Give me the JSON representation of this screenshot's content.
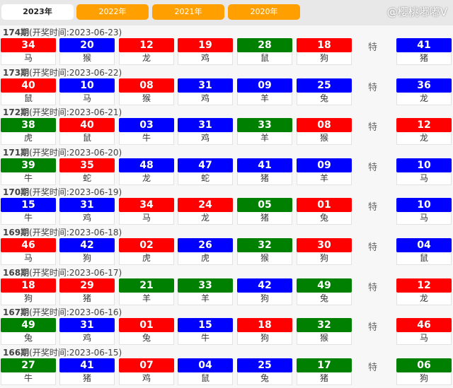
{
  "tabs": [
    "2023年",
    "2022年",
    "2021年",
    "2020年"
  ],
  "special_label": "特",
  "colors": {
    "red": "#ff0000",
    "blue": "#0000ff",
    "green": "#008000"
  },
  "draws": [
    {
      "period": "174期",
      "date": "(开奖时间:2023-06-23)",
      "balls": [
        [
          "34",
          "马",
          "red"
        ],
        [
          "20",
          "猴",
          "blue"
        ],
        [
          "12",
          "龙",
          "red"
        ],
        [
          "19",
          "鸡",
          "red"
        ],
        [
          "28",
          "鼠",
          "green"
        ],
        [
          "18",
          "狗",
          "red"
        ]
      ],
      "special": [
        "41",
        "猪",
        "blue"
      ]
    },
    {
      "period": "173期",
      "date": "(开奖时间:2023-06-22)",
      "balls": [
        [
          "40",
          "鼠",
          "red"
        ],
        [
          "10",
          "马",
          "blue"
        ],
        [
          "08",
          "猴",
          "red"
        ],
        [
          "31",
          "鸡",
          "blue"
        ],
        [
          "09",
          "羊",
          "blue"
        ],
        [
          "25",
          "兔",
          "blue"
        ]
      ],
      "special": [
        "36",
        "龙",
        "blue"
      ]
    },
    {
      "period": "172期",
      "date": "(开奖时间:2023-06-21)",
      "balls": [
        [
          "38",
          "虎",
          "green"
        ],
        [
          "40",
          "鼠",
          "red"
        ],
        [
          "03",
          "牛",
          "blue"
        ],
        [
          "31",
          "鸡",
          "blue"
        ],
        [
          "33",
          "羊",
          "green"
        ],
        [
          "08",
          "猴",
          "red"
        ]
      ],
      "special": [
        "12",
        "龙",
        "red"
      ]
    },
    {
      "period": "171期",
      "date": "(开奖时间:2023-06-20)",
      "balls": [
        [
          "39",
          "牛",
          "green"
        ],
        [
          "35",
          "蛇",
          "red"
        ],
        [
          "48",
          "龙",
          "blue"
        ],
        [
          "47",
          "蛇",
          "blue"
        ],
        [
          "41",
          "猪",
          "blue"
        ],
        [
          "09",
          "羊",
          "blue"
        ]
      ],
      "special": [
        "10",
        "马",
        "blue"
      ]
    },
    {
      "period": "170期",
      "date": "(开奖时间:2023-06-19)",
      "balls": [
        [
          "15",
          "牛",
          "blue"
        ],
        [
          "31",
          "鸡",
          "blue"
        ],
        [
          "34",
          "马",
          "red"
        ],
        [
          "24",
          "龙",
          "red"
        ],
        [
          "05",
          "猪",
          "green"
        ],
        [
          "01",
          "兔",
          "red"
        ]
      ],
      "special": [
        "10",
        "马",
        "blue"
      ]
    },
    {
      "period": "169期",
      "date": "(开奖时间:2023-06-18)",
      "balls": [
        [
          "46",
          "马",
          "red"
        ],
        [
          "42",
          "狗",
          "blue"
        ],
        [
          "02",
          "虎",
          "red"
        ],
        [
          "26",
          "虎",
          "blue"
        ],
        [
          "32",
          "猴",
          "green"
        ],
        [
          "30",
          "狗",
          "red"
        ]
      ],
      "special": [
        "04",
        "鼠",
        "blue"
      ]
    },
    {
      "period": "168期",
      "date": "(开奖时间:2023-06-17)",
      "balls": [
        [
          "18",
          "狗",
          "red"
        ],
        [
          "29",
          "猪",
          "red"
        ],
        [
          "21",
          "羊",
          "green"
        ],
        [
          "33",
          "羊",
          "green"
        ],
        [
          "42",
          "狗",
          "blue"
        ],
        [
          "49",
          "兔",
          "green"
        ]
      ],
      "special": [
        "12",
        "龙",
        "red"
      ]
    },
    {
      "period": "167期",
      "date": "(开奖时间:2023-06-16)",
      "balls": [
        [
          "49",
          "兔",
          "green"
        ],
        [
          "31",
          "鸡",
          "blue"
        ],
        [
          "01",
          "兔",
          "red"
        ],
        [
          "15",
          "牛",
          "blue"
        ],
        [
          "18",
          "狗",
          "red"
        ],
        [
          "32",
          "猴",
          "green"
        ]
      ],
      "special": [
        "46",
        "马",
        "red"
      ]
    },
    {
      "period": "166期",
      "date": "(开奖时间:2023-06-15)",
      "balls": [
        [
          "27",
          "牛",
          "green"
        ],
        [
          "41",
          "猪",
          "blue"
        ],
        [
          "07",
          "鸡",
          "red"
        ],
        [
          "04",
          "鼠",
          "blue"
        ],
        [
          "25",
          "兔",
          "blue"
        ],
        [
          "17",
          "猪",
          "green"
        ]
      ],
      "special": [
        "06",
        "狗",
        "green"
      ]
    }
  ],
  "watermark": "@樱桃嘟嘟V"
}
